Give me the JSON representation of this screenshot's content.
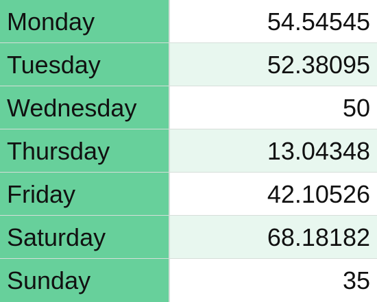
{
  "table": {
    "rows": [
      {
        "day": "Monday",
        "value": "54.54545"
      },
      {
        "day": "Tuesday",
        "value": "52.38095"
      },
      {
        "day": "Wednesday",
        "value": "50"
      },
      {
        "day": "Thursday",
        "value": "13.04348"
      },
      {
        "day": "Friday",
        "value": "42.10526"
      },
      {
        "day": "Saturday",
        "value": "68.18182"
      },
      {
        "day": "Sunday",
        "value": "35"
      }
    ]
  },
  "colors": {
    "day_column": "#67d09b",
    "alt_row": "#e8f7ef",
    "grid": "#d6ded9"
  }
}
